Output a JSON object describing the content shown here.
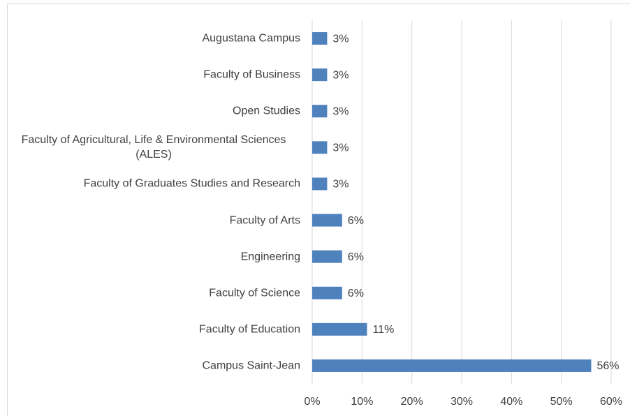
{
  "chart_data": {
    "type": "bar",
    "orientation": "horizontal",
    "categories": [
      "Augustana Campus",
      "Faculty of Business",
      "Open Studies",
      "Faculty of Agricultural, Life & Environmental Sciences (ALES)",
      "Faculty of Graduates Studies and Research",
      "Faculty of Arts",
      "Engineering",
      "Faculty of Science",
      "Faculty of Education",
      "Campus Saint-Jean"
    ],
    "values": [
      3,
      3,
      3,
      3,
      3,
      6,
      6,
      6,
      11,
      56
    ],
    "value_labels": [
      "3%",
      "3%",
      "3%",
      "3%",
      "3%",
      "6%",
      "6%",
      "6%",
      "11%",
      "56%"
    ],
    "color": "#4f81bd",
    "xlim": [
      0,
      60
    ],
    "xticks": [
      {
        "value": 0,
        "label": "0%"
      },
      {
        "value": 10,
        "label": "10%"
      },
      {
        "value": 20,
        "label": "20%"
      },
      {
        "value": 30,
        "label": "30%"
      },
      {
        "value": 40,
        "label": "40%"
      },
      {
        "value": 50,
        "label": "50%"
      },
      {
        "value": 60,
        "label": "60%"
      }
    ],
    "grid": true
  }
}
